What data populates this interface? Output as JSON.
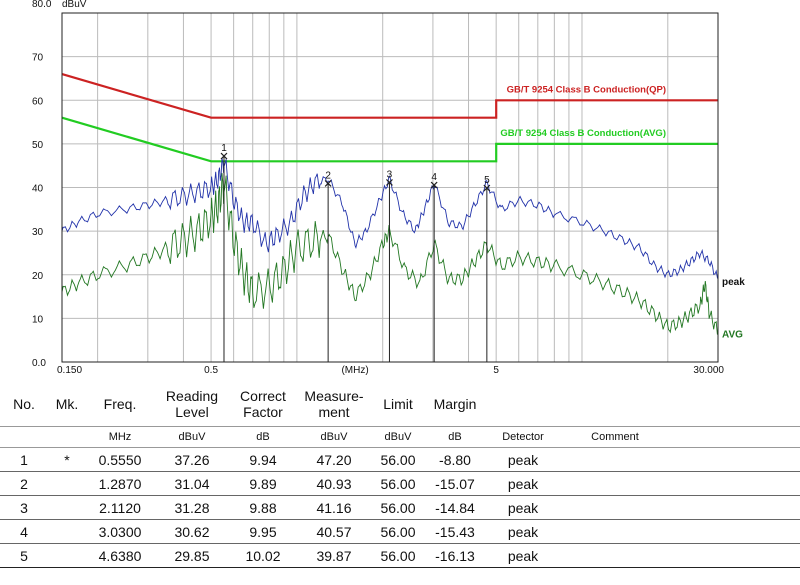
{
  "chart_data": {
    "type": "line",
    "ylabel": "dBuV",
    "xlabel": "(MHz)",
    "x_scale": "log",
    "xlim": [
      0.15,
      30
    ],
    "ylim": [
      0,
      80
    ],
    "y_ticks": [
      "0.0",
      "10",
      "20",
      "30",
      "40",
      "50",
      "60",
      "70",
      "80.0"
    ],
    "x_ticks": [
      {
        "value": 0.15,
        "label": "0.150"
      },
      {
        "value": 0.5,
        "label": "0.5"
      },
      {
        "value": 1.6,
        "label": "(MHz)"
      },
      {
        "value": 5,
        "label": "5"
      },
      {
        "value": 30,
        "label": "30.000"
      }
    ],
    "limits": [
      {
        "name": "GB/T 9254 Class B Conduction(QP)",
        "color": "#cc2222",
        "points": [
          [
            0.15,
            66
          ],
          [
            0.5,
            56
          ],
          [
            5,
            56
          ],
          [
            5,
            60
          ],
          [
            30,
            60
          ]
        ]
      },
      {
        "name": "GB/T 9254 Class B Conduction(AVG)",
        "color": "#22cc22",
        "points": [
          [
            0.15,
            56
          ],
          [
            0.5,
            46
          ],
          [
            5,
            46
          ],
          [
            5,
            50
          ],
          [
            30,
            50
          ]
        ]
      }
    ],
    "series": [
      {
        "name": "peak",
        "color": "#2233aa",
        "points": [
          [
            0.15,
            30
          ],
          [
            0.17,
            32
          ],
          [
            0.2,
            34
          ],
          [
            0.25,
            35
          ],
          [
            0.3,
            36
          ],
          [
            0.35,
            37
          ],
          [
            0.4,
            38
          ],
          [
            0.45,
            39
          ],
          [
            0.5,
            40
          ],
          [
            0.53,
            42
          ],
          [
            0.555,
            46
          ],
          [
            0.6,
            37
          ],
          [
            0.65,
            32
          ],
          [
            0.7,
            32
          ],
          [
            0.78,
            27
          ],
          [
            0.85,
            29
          ],
          [
            0.95,
            32
          ],
          [
            1.05,
            38
          ],
          [
            1.15,
            41
          ],
          [
            1.287,
            42
          ],
          [
            1.45,
            36
          ],
          [
            1.6,
            27
          ],
          [
            1.75,
            30
          ],
          [
            1.95,
            37
          ],
          [
            2.112,
            42
          ],
          [
            2.35,
            34
          ],
          [
            2.6,
            30
          ],
          [
            2.8,
            35
          ],
          [
            3.03,
            41
          ],
          [
            3.4,
            32
          ],
          [
            3.8,
            31
          ],
          [
            4.2,
            36
          ],
          [
            4.638,
            41
          ],
          [
            5.2,
            35
          ],
          [
            6,
            37
          ],
          [
            7,
            36
          ],
          [
            8,
            34
          ],
          [
            10,
            32
          ],
          [
            12,
            30
          ],
          [
            14,
            28
          ],
          [
            16,
            26
          ],
          [
            18,
            22
          ],
          [
            20,
            20
          ],
          [
            22,
            21
          ],
          [
            24,
            23
          ],
          [
            26,
            25
          ],
          [
            28,
            23
          ],
          [
            30,
            19
          ]
        ]
      },
      {
        "name": "AVG",
        "color": "#227722",
        "points": [
          [
            0.15,
            16
          ],
          [
            0.17,
            18
          ],
          [
            0.2,
            20
          ],
          [
            0.25,
            22
          ],
          [
            0.3,
            24
          ],
          [
            0.35,
            26
          ],
          [
            0.4,
            28
          ],
          [
            0.45,
            30
          ],
          [
            0.5,
            33
          ],
          [
            0.53,
            36
          ],
          [
            0.555,
            41
          ],
          [
            0.6,
            28
          ],
          [
            0.65,
            20
          ],
          [
            0.7,
            16
          ],
          [
            0.8,
            17
          ],
          [
            0.9,
            21
          ],
          [
            1.0,
            26
          ],
          [
            1.15,
            28
          ],
          [
            1.287,
            29
          ],
          [
            1.45,
            21
          ],
          [
            1.6,
            15
          ],
          [
            1.8,
            20
          ],
          [
            2.0,
            27
          ],
          [
            2.112,
            30
          ],
          [
            2.4,
            21
          ],
          [
            2.7,
            18
          ],
          [
            3.03,
            27
          ],
          [
            3.4,
            19
          ],
          [
            3.8,
            19
          ],
          [
            4.2,
            23
          ],
          [
            4.638,
            27
          ],
          [
            5.2,
            22
          ],
          [
            6,
            24
          ],
          [
            7,
            23
          ],
          [
            8,
            22
          ],
          [
            10,
            20
          ],
          [
            12,
            18
          ],
          [
            14,
            16
          ],
          [
            16,
            14
          ],
          [
            18,
            11
          ],
          [
            20,
            8
          ],
          [
            22,
            9
          ],
          [
            24,
            11
          ],
          [
            26,
            13
          ],
          [
            27,
            18
          ],
          [
            28,
            11
          ],
          [
            30,
            7
          ]
        ]
      }
    ],
    "markers": [
      {
        "label": "1",
        "freq": 0.555,
        "value": 47.2
      },
      {
        "label": "2",
        "freq": 1.287,
        "value": 40.93
      },
      {
        "label": "3",
        "freq": 2.112,
        "value": 41.16
      },
      {
        "label": "4",
        "freq": 3.03,
        "value": 40.57
      },
      {
        "label": "5",
        "freq": 4.638,
        "value": 39.87
      }
    ]
  },
  "table": {
    "headers": {
      "no": "No.",
      "mk": "Mk.",
      "freq": "Freq.",
      "reading_1": "Reading",
      "reading_2": "Level",
      "correct_1": "Correct",
      "correct_2": "Factor",
      "measure_1": "Measure-",
      "measure_2": "ment",
      "limit": "Limit",
      "margin": "Margin"
    },
    "units": {
      "freq": "MHz",
      "reading": "dBuV",
      "correct": "dB",
      "measure": "dBuV",
      "limit": "dBuV",
      "margin": "dB",
      "detector": "Detector",
      "comment": "Comment"
    },
    "rows": [
      {
        "no": "1",
        "mk": "*",
        "freq": "0.5550",
        "reading": "37.26",
        "correct": "9.94",
        "measure": "47.20",
        "limit": "56.00",
        "margin": "-8.80",
        "detector": "peak"
      },
      {
        "no": "2",
        "mk": "",
        "freq": "1.2870",
        "reading": "31.04",
        "correct": "9.89",
        "measure": "40.93",
        "limit": "56.00",
        "margin": "-15.07",
        "detector": "peak"
      },
      {
        "no": "3",
        "mk": "",
        "freq": "2.1120",
        "reading": "31.28",
        "correct": "9.88",
        "measure": "41.16",
        "limit": "56.00",
        "margin": "-14.84",
        "detector": "peak"
      },
      {
        "no": "4",
        "mk": "",
        "freq": "3.0300",
        "reading": "30.62",
        "correct": "9.95",
        "measure": "40.57",
        "limit": "56.00",
        "margin": "-15.43",
        "detector": "peak"
      },
      {
        "no": "5",
        "mk": "",
        "freq": "4.6380",
        "reading": "29.85",
        "correct": "10.02",
        "measure": "39.87",
        "limit": "56.00",
        "margin": "-16.13",
        "detector": "peak"
      }
    ]
  }
}
